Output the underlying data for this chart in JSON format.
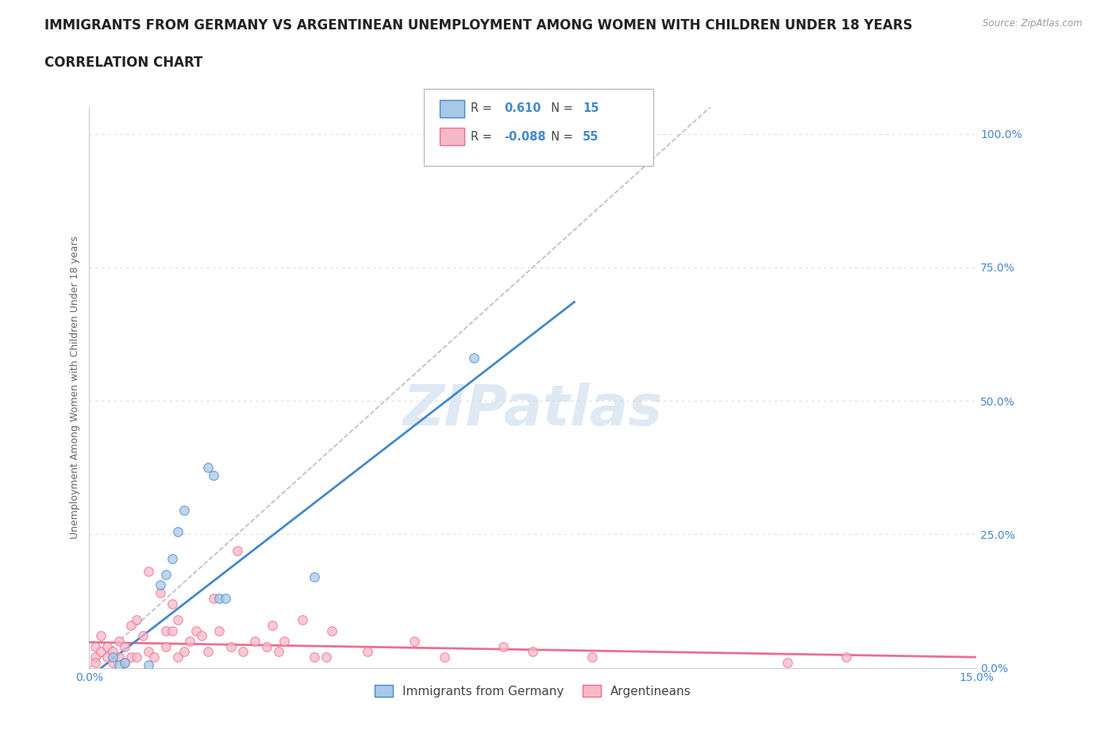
{
  "title_line1": "IMMIGRANTS FROM GERMANY VS ARGENTINEAN UNEMPLOYMENT AMONG WOMEN WITH CHILDREN UNDER 18 YEARS",
  "title_line2": "CORRELATION CHART",
  "source_text": "Source: ZipAtlas.com",
  "ylabel": "Unemployment Among Women with Children Under 18 years",
  "xlim": [
    0.0,
    0.15
  ],
  "ylim": [
    0.0,
    1.05
  ],
  "y_ticks": [
    0.0,
    0.25,
    0.5,
    0.75,
    1.0
  ],
  "y_tick_labels": [
    "0.0%",
    "25.0%",
    "50.0%",
    "75.0%",
    "100.0%"
  ],
  "x_ticks": [
    0.0,
    0.03,
    0.06,
    0.09,
    0.12,
    0.15
  ],
  "x_tick_labels": [
    "0.0%",
    "",
    "",
    "",
    "",
    "15.0%"
  ],
  "watermark": "ZIPatlas",
  "blue_scatter_x": [
    0.004,
    0.005,
    0.006,
    0.01,
    0.012,
    0.013,
    0.014,
    0.015,
    0.016,
    0.02,
    0.021,
    0.022,
    0.023,
    0.038,
    0.065
  ],
  "blue_scatter_y": [
    0.02,
    0.005,
    0.01,
    0.005,
    0.155,
    0.175,
    0.205,
    0.255,
    0.295,
    0.375,
    0.36,
    0.13,
    0.13,
    0.17,
    0.58
  ],
  "pink_scatter_x": [
    0.001,
    0.001,
    0.001,
    0.002,
    0.002,
    0.003,
    0.003,
    0.004,
    0.004,
    0.005,
    0.005,
    0.006,
    0.006,
    0.007,
    0.007,
    0.008,
    0.008,
    0.009,
    0.01,
    0.01,
    0.011,
    0.012,
    0.013,
    0.013,
    0.014,
    0.014,
    0.015,
    0.015,
    0.016,
    0.017,
    0.018,
    0.019,
    0.02,
    0.021,
    0.022,
    0.024,
    0.025,
    0.026,
    0.028,
    0.03,
    0.031,
    0.032,
    0.033,
    0.036,
    0.038,
    0.04,
    0.041,
    0.047,
    0.055,
    0.06,
    0.07,
    0.075,
    0.085,
    0.118,
    0.128
  ],
  "pink_scatter_y": [
    0.02,
    0.04,
    0.01,
    0.03,
    0.06,
    0.02,
    0.04,
    0.01,
    0.03,
    0.02,
    0.05,
    0.01,
    0.04,
    0.02,
    0.08,
    0.02,
    0.09,
    0.06,
    0.03,
    0.18,
    0.02,
    0.14,
    0.04,
    0.07,
    0.12,
    0.07,
    0.02,
    0.09,
    0.03,
    0.05,
    0.07,
    0.06,
    0.03,
    0.13,
    0.07,
    0.04,
    0.22,
    0.03,
    0.05,
    0.04,
    0.08,
    0.03,
    0.05,
    0.09,
    0.02,
    0.02,
    0.07,
    0.03,
    0.05,
    0.02,
    0.04,
    0.03,
    0.02,
    0.01,
    0.02
  ],
  "blue_line_x": [
    -0.005,
    0.082
  ],
  "blue_line_y": [
    -0.06,
    0.685
  ],
  "pink_line_x": [
    0.0,
    0.15
  ],
  "pink_line_y": [
    0.048,
    0.02
  ],
  "diag_line_x": [
    0.0,
    0.105
  ],
  "diag_line_y": [
    0.0,
    1.05
  ],
  "blue_color": "#A8C8E8",
  "pink_color": "#F8B8C8",
  "blue_line_color": "#4488CC",
  "pink_line_color": "#E87090",
  "diag_line_color": "#BBBBCC",
  "legend_blue_r": "0.610",
  "legend_blue_n": "15",
  "legend_pink_r": "-0.088",
  "legend_pink_n": "55",
  "accent_color": "#4488CC",
  "title_fontsize": 12,
  "subtitle_fontsize": 12,
  "axis_label_fontsize": 9,
  "tick_fontsize": 10,
  "watermark_fontsize": 52,
  "scatter_size": 70,
  "background_color": "#FFFFFF",
  "grid_color": "#DDDDDD"
}
